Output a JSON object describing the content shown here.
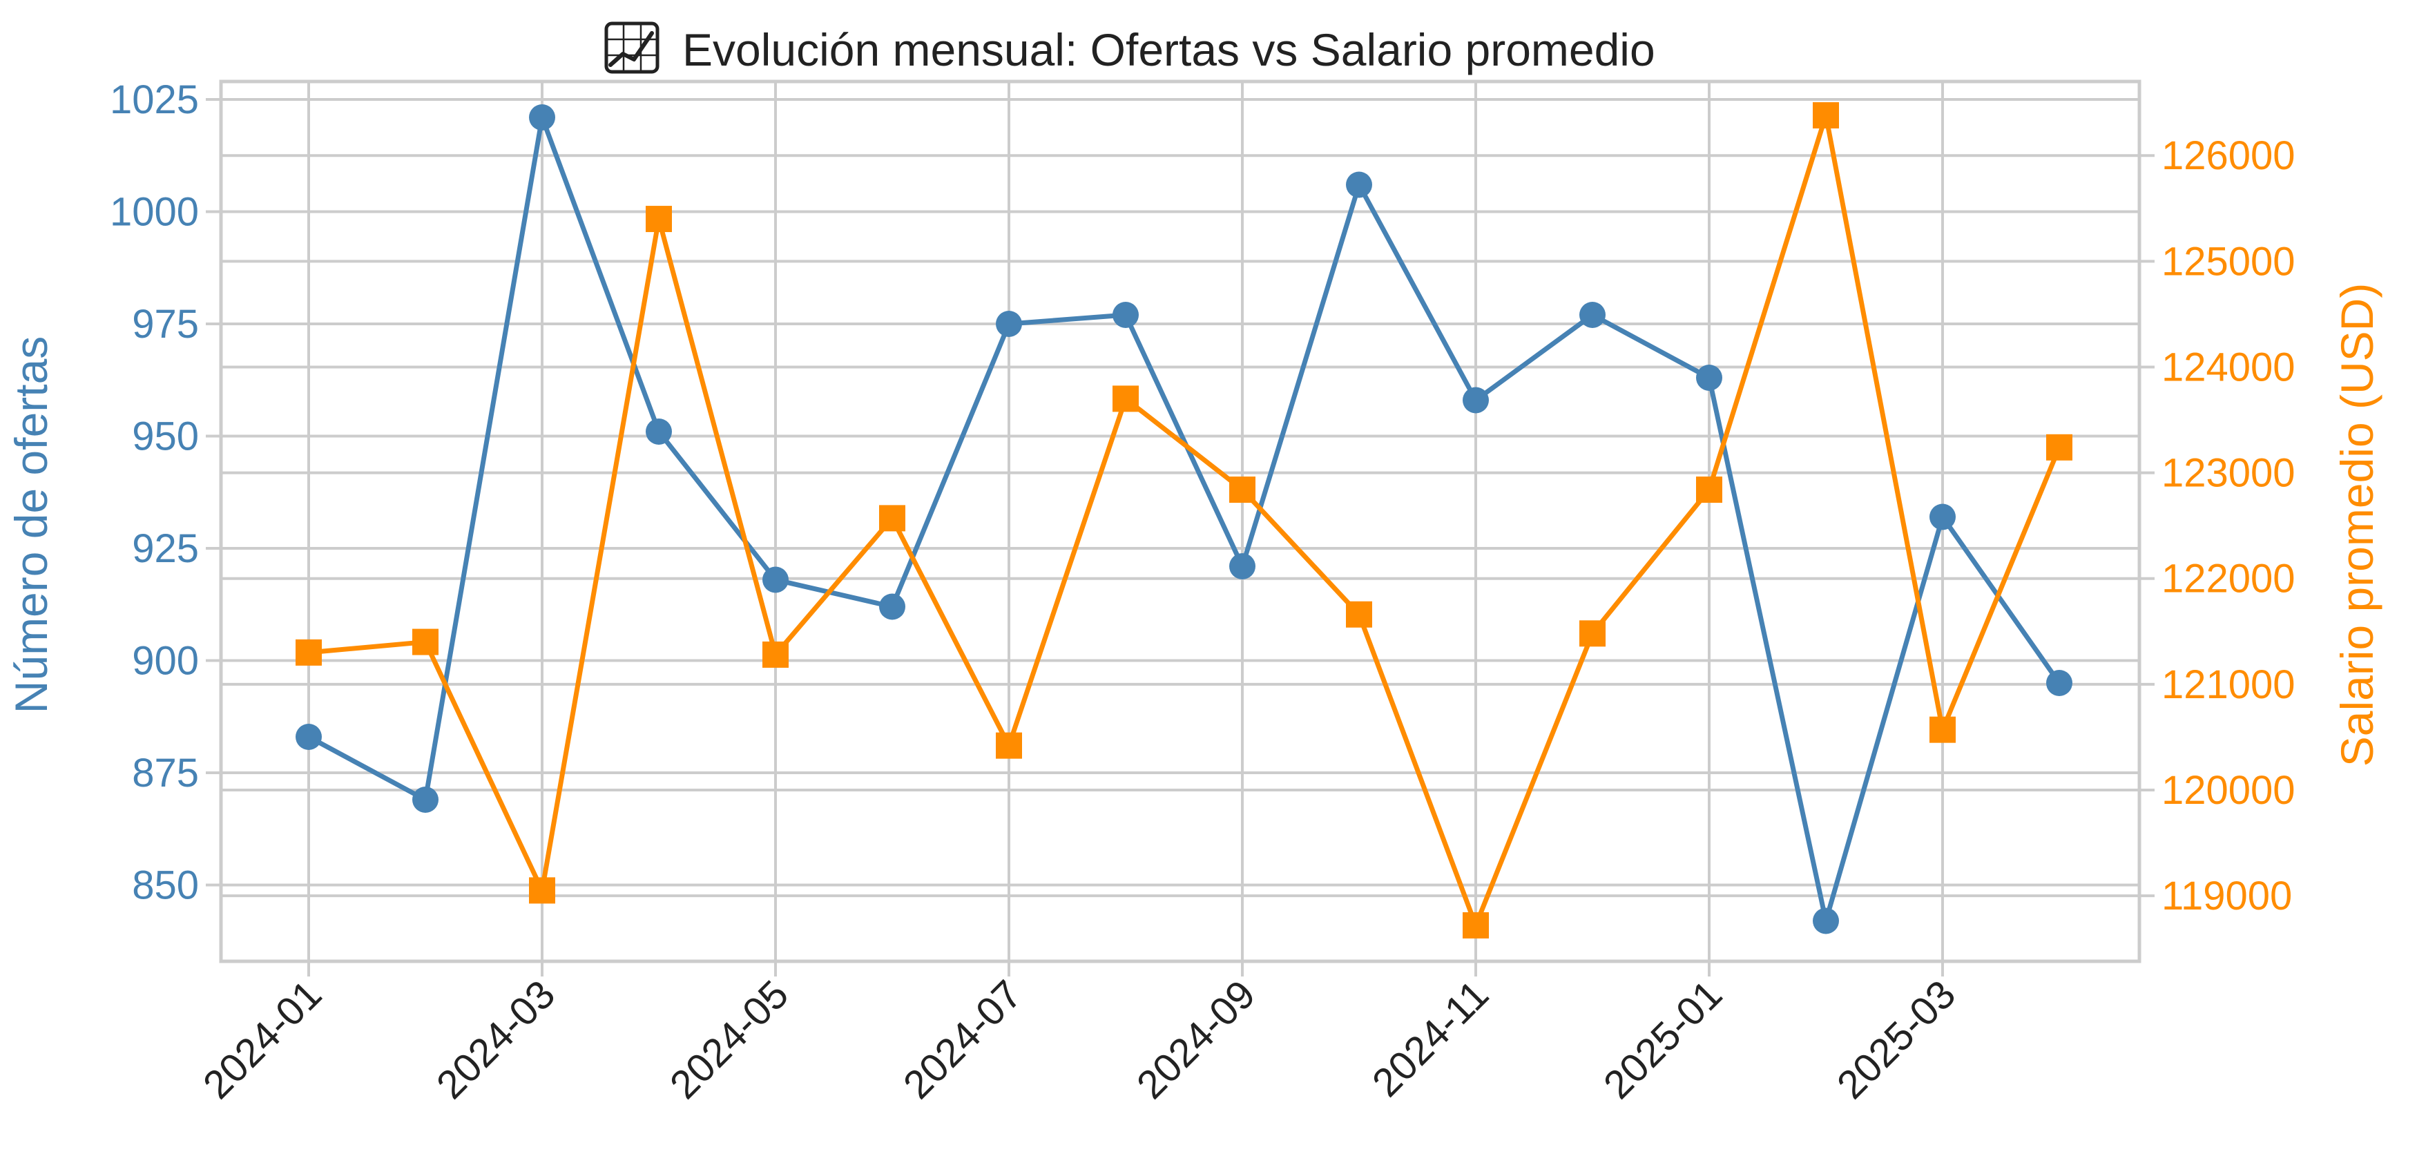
{
  "title": "Evolución mensual: Ofertas vs Salario promedio",
  "title_icon": "chart-increasing-icon",
  "colors": {
    "ofertas": "#4682B4",
    "salario": "#FF8C00",
    "grid": "#CCCCCC",
    "frame": "#CCCCCC",
    "title": "#222222",
    "x_ticks": "#222222"
  },
  "chart_data": {
    "type": "line",
    "x": [
      "2024-01",
      "2024-02",
      "2024-03",
      "2024-04",
      "2024-05",
      "2024-06",
      "2024-07",
      "2024-08",
      "2024-09",
      "2024-10",
      "2024-11",
      "2024-12",
      "2025-01",
      "2025-02",
      "2025-03",
      "2025-04"
    ],
    "x_tick_labels": [
      "2024-01",
      "2024-03",
      "2024-05",
      "2024-07",
      "2024-09",
      "2024-11",
      "2025-01",
      "2025-03"
    ],
    "ylabel_left": "Número de ofertas",
    "ylabel_right": "Salario promedio (USD)",
    "ylim_left": [
      833,
      1029
    ],
    "ylim_right": [
      118380,
      126700
    ],
    "yticks_left": [
      850,
      875,
      900,
      925,
      950,
      975,
      1000,
      1025
    ],
    "yticks_right": [
      119000,
      120000,
      121000,
      122000,
      123000,
      124000,
      125000,
      126000
    ],
    "grid": true,
    "series": [
      {
        "axis": "left",
        "marker": "circle",
        "values": [
          883,
          869,
          1021,
          951,
          918,
          912,
          975,
          977,
          921,
          1006,
          958,
          977,
          963,
          842,
          932,
          895
        ]
      },
      {
        "axis": "right",
        "marker": "square",
        "values": [
          121300,
          121400,
          119050,
          125400,
          121280,
          122570,
          120420,
          123700,
          122840,
          121660,
          118720,
          121480,
          122840,
          126380,
          120570,
          123240
        ]
      }
    ]
  }
}
